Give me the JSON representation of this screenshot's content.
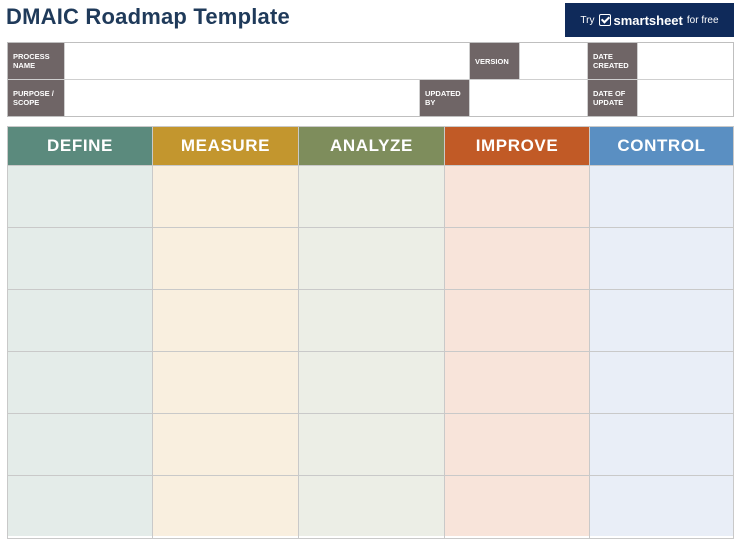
{
  "title": "DMAIC Roadmap Template",
  "promo": {
    "try": "Try",
    "brand": "smartsheet",
    "suffix": "for free",
    "bg": "#0f2a5a"
  },
  "info": {
    "process_name_label": "PROCESS NAME",
    "version_label": "VERSION",
    "date_created_label": "DATE CREATED",
    "purpose_scope_label": "PURPOSE / SCOPE",
    "updated_by_label": "UPDATED BY",
    "date_of_update_label": "DATE OF UPDATE",
    "process_name_value": "",
    "version_value": "",
    "date_created_value": "",
    "purpose_scope_value": "",
    "updated_by_value": "",
    "date_of_update_value": ""
  },
  "phases": [
    {
      "label": "DEFINE",
      "head_color": "#5b8a7d",
      "body_color": "#e4ece9"
    },
    {
      "label": "MEASURE",
      "head_color": "#c3962e",
      "body_color": "#f9efdf"
    },
    {
      "label": "ANALYZE",
      "head_color": "#7e8d5c",
      "body_color": "#eceee6"
    },
    {
      "label": "IMPROVE",
      "head_color": "#c15a26",
      "body_color": "#f8e4da"
    },
    {
      "label": "CONTROL",
      "head_color": "#5a8fc2",
      "body_color": "#e9eef7"
    }
  ]
}
